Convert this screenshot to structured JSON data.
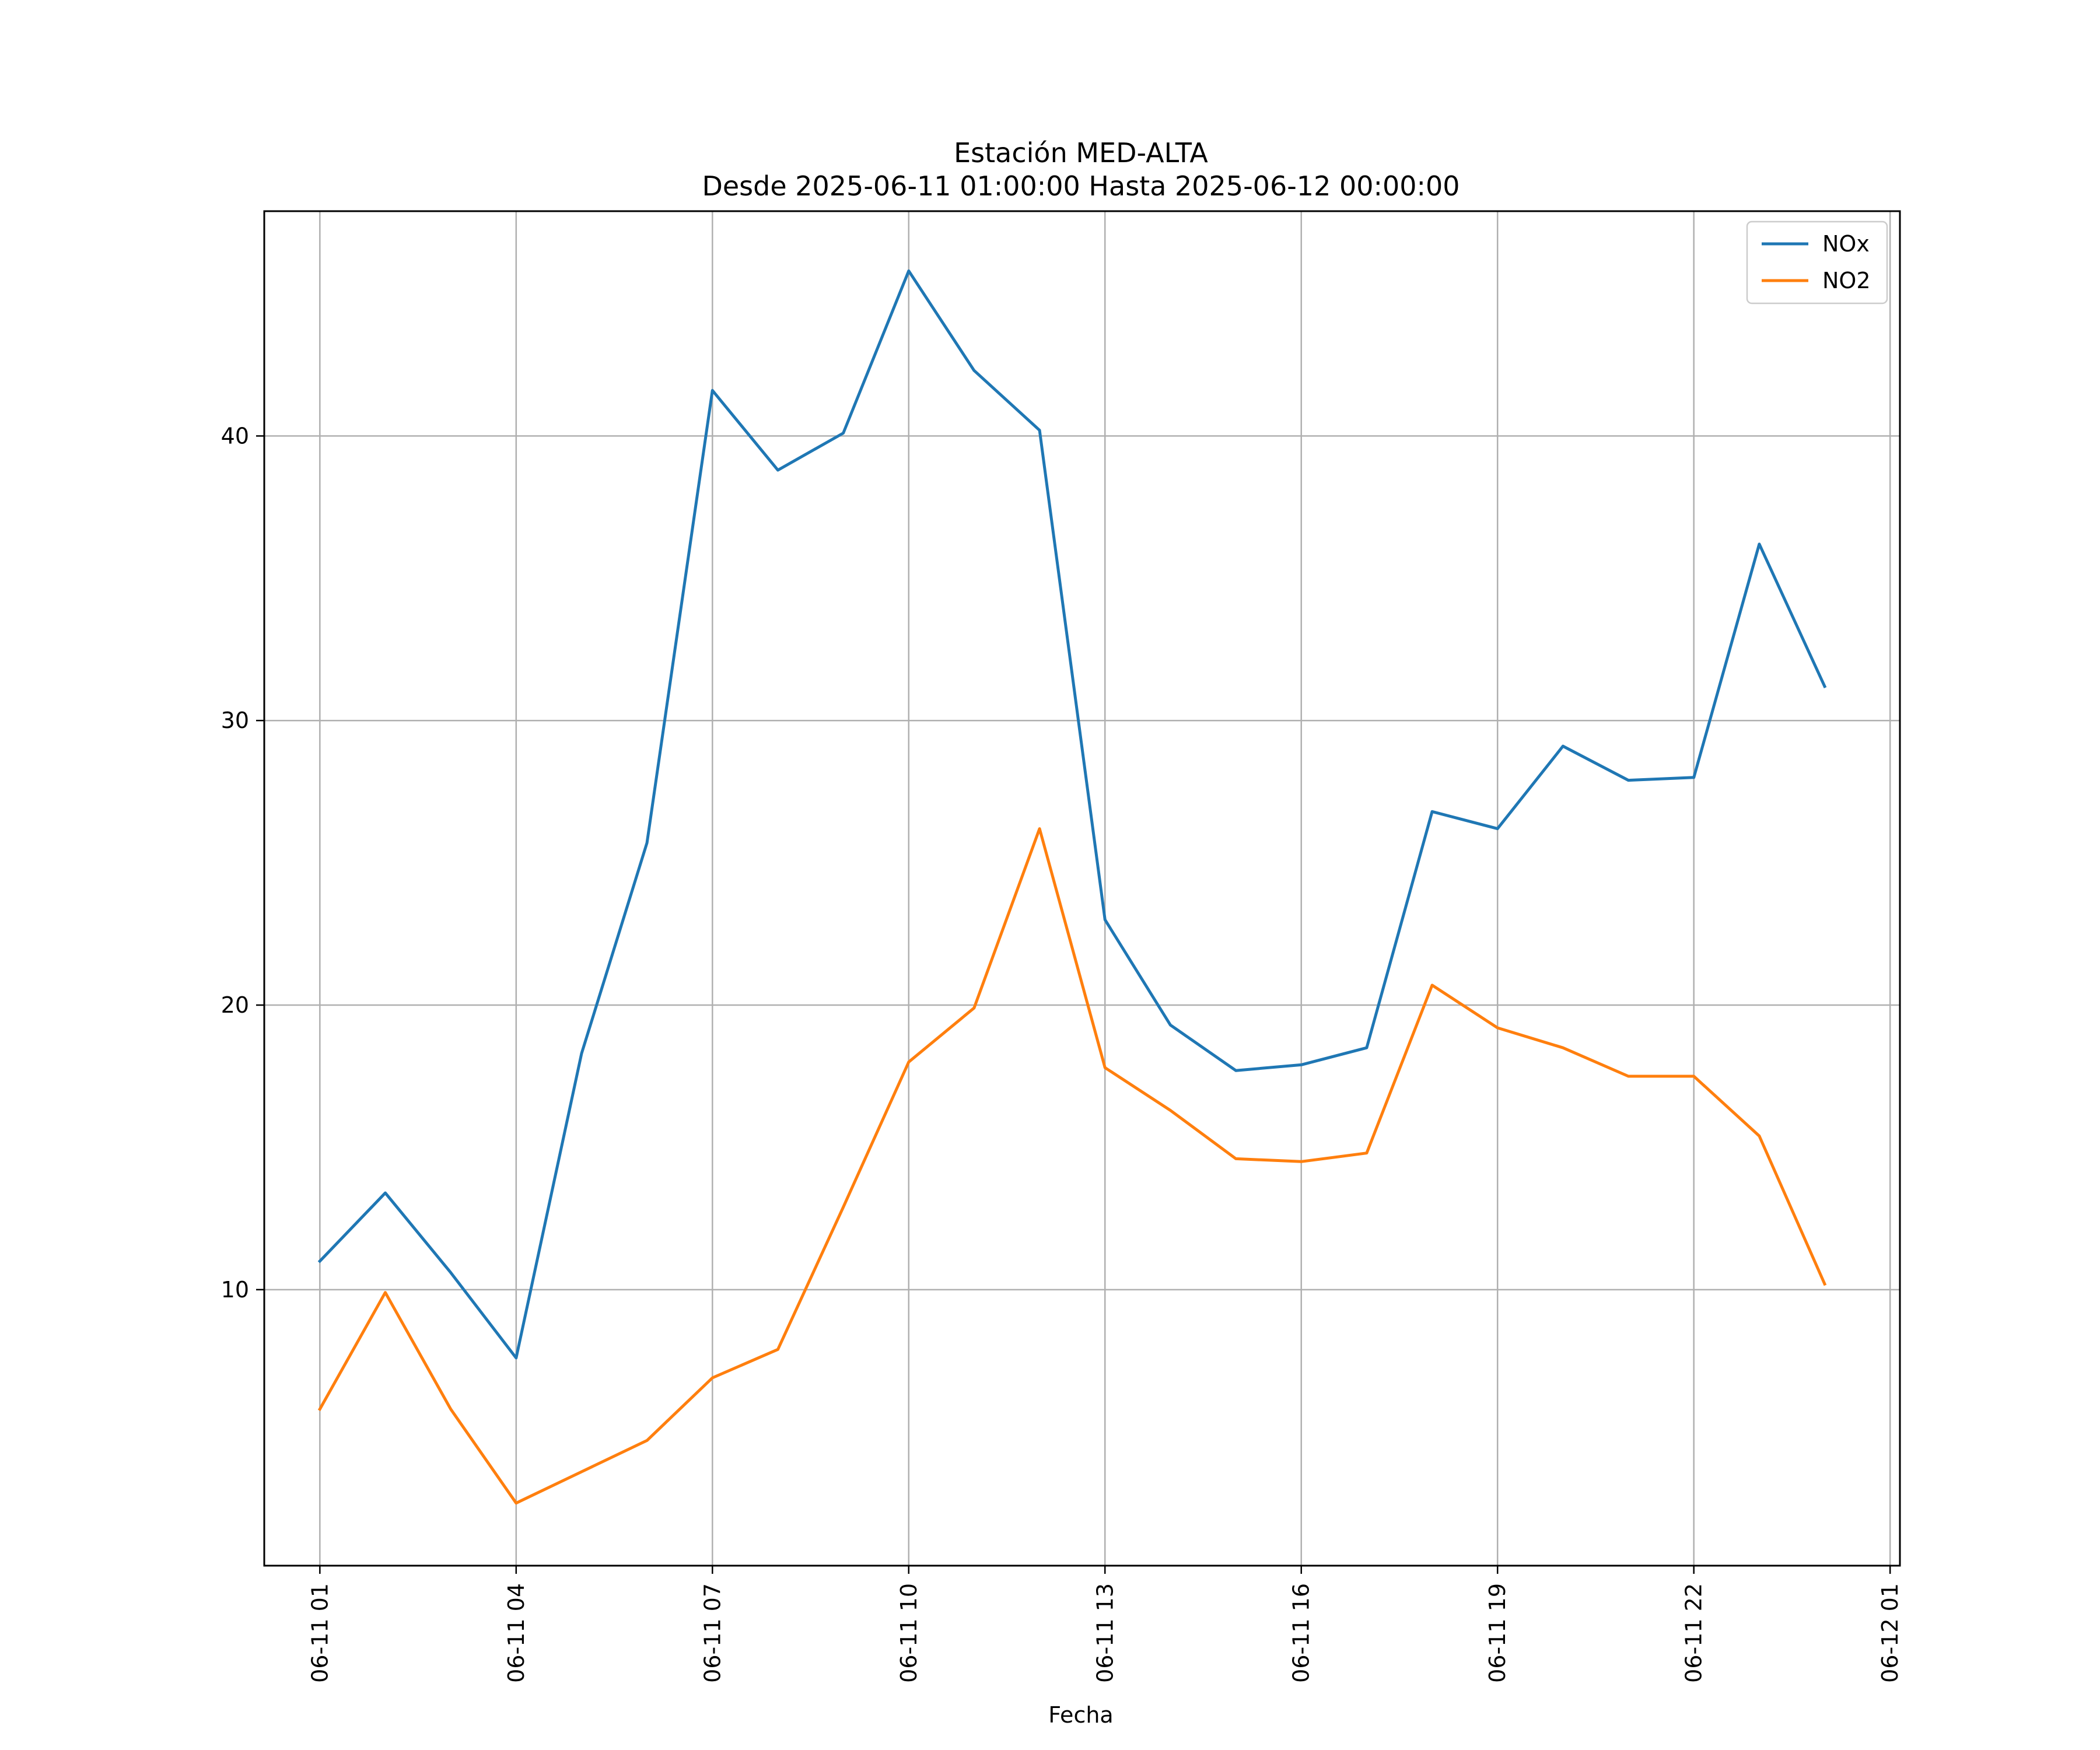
{
  "chart_data": {
    "type": "line",
    "title": "Estación MED-ALTA",
    "subtitle": "Desde 2025-06-11 01:00:00 Hasta 2025-06-12 00:00:00",
    "xlabel": "Fecha",
    "ylabel": "",
    "x": [
      "2025-06-11 01:00",
      "2025-06-11 02:00",
      "2025-06-11 03:00",
      "2025-06-11 04:00",
      "2025-06-11 05:00",
      "2025-06-11 06:00",
      "2025-06-11 07:00",
      "2025-06-11 08:00",
      "2025-06-11 09:00",
      "2025-06-11 10:00",
      "2025-06-11 11:00",
      "2025-06-11 12:00",
      "2025-06-11 13:00",
      "2025-06-11 14:00",
      "2025-06-11 15:00",
      "2025-06-11 16:00",
      "2025-06-11 17:00",
      "2025-06-11 18:00",
      "2025-06-11 19:00",
      "2025-06-11 20:00",
      "2025-06-11 21:00",
      "2025-06-11 22:00",
      "2025-06-11 23:00",
      "2025-06-12 00:00"
    ],
    "x_ticks": [
      "06-11 01",
      "06-11 04",
      "06-11 07",
      "06-11 10",
      "06-11 13",
      "06-11 16",
      "06-11 19",
      "06-11 22",
      "06-12 01"
    ],
    "y_ticks": [
      10,
      20,
      30,
      40
    ],
    "ylim": [
      0.3,
      47.9
    ],
    "xlim": [
      "2025-06-11 00:09",
      "2025-06-12 01:09"
    ],
    "grid": true,
    "legend_position": "top-right",
    "series": [
      {
        "name": "NOx",
        "color": "#1f77b4",
        "values": [
          11.0,
          13.4,
          10.6,
          7.6,
          18.3,
          25.7,
          41.6,
          38.8,
          40.1,
          45.8,
          42.3,
          40.2,
          23.0,
          19.3,
          17.7,
          17.9,
          18.5,
          26.8,
          26.2,
          29.1,
          27.9,
          28.0,
          36.2,
          31.2
        ]
      },
      {
        "name": "NO2",
        "color": "#ff7f0e",
        "values": [
          5.8,
          9.9,
          5.8,
          2.5,
          3.6,
          4.7,
          6.9,
          7.9,
          12.9,
          18.0,
          19.9,
          26.2,
          17.8,
          16.3,
          14.6,
          14.5,
          14.8,
          20.7,
          19.2,
          18.5,
          17.5,
          17.5,
          15.4,
          10.2
        ]
      }
    ]
  }
}
